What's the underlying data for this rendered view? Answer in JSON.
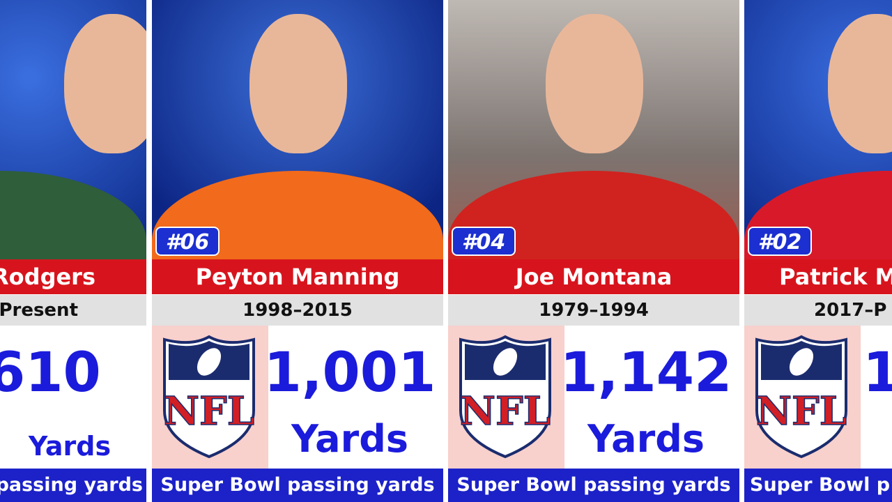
{
  "logo_text": "NFL",
  "cards": [
    {
      "name": "Rodgers",
      "years": "Present",
      "value": "610",
      "unit": "Yards",
      "label": "passing yards"
    },
    {
      "rank": "#06",
      "name": "Peyton Manning",
      "years": "1998–2015",
      "value": "1,001",
      "unit": "Yards",
      "label": "Super Bowl passing yards"
    },
    {
      "rank": "#04",
      "name": "Joe Montana",
      "years": "1979–1994",
      "value": "1,142",
      "unit": "Yards",
      "label": "Super Bowl passing yards"
    },
    {
      "rank": "#02",
      "name": "Patrick M",
      "years": "2017–P",
      "value": "1",
      "label": "Super Bowl p"
    }
  ]
}
